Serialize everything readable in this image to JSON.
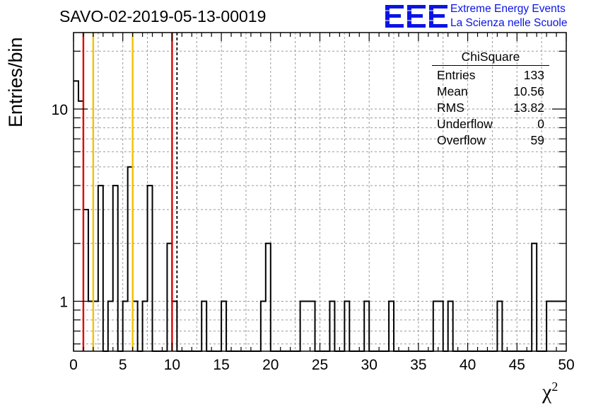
{
  "chart_data": {
    "type": "histogram",
    "title": "SAVO-02-2019-05-13-00019",
    "xlabel": "χ²",
    "ylabel": "Entries/bin",
    "xlim": [
      0,
      50
    ],
    "ylim": [
      0.55,
      25
    ],
    "yscale": "log",
    "grid": true,
    "bin_width": 0.5,
    "bins": [
      {
        "x": 0.0,
        "y": 14
      },
      {
        "x": 0.5,
        "y": 11
      },
      {
        "x": 1.0,
        "y": 3
      },
      {
        "x": 1.5,
        "y": 1
      },
      {
        "x": 2.0,
        "y": 1
      },
      {
        "x": 2.5,
        "y": 4
      },
      {
        "x": 3.0,
        "y": 0
      },
      {
        "x": 3.5,
        "y": 1
      },
      {
        "x": 4.0,
        "y": 4
      },
      {
        "x": 4.5,
        "y": 0
      },
      {
        "x": 5.0,
        "y": 1
      },
      {
        "x": 5.5,
        "y": 5
      },
      {
        "x": 6.0,
        "y": 1
      },
      {
        "x": 6.5,
        "y": 0
      },
      {
        "x": 7.0,
        "y": 1
      },
      {
        "x": 7.5,
        "y": 4
      },
      {
        "x": 8.0,
        "y": 0
      },
      {
        "x": 8.5,
        "y": 0
      },
      {
        "x": 9.0,
        "y": 0
      },
      {
        "x": 9.5,
        "y": 2
      },
      {
        "x": 10.0,
        "y": 1
      },
      {
        "x": 13.0,
        "y": 1
      },
      {
        "x": 15.0,
        "y": 1
      },
      {
        "x": 19.0,
        "y": 1
      },
      {
        "x": 19.5,
        "y": 2
      },
      {
        "x": 23.0,
        "y": 1
      },
      {
        "x": 23.5,
        "y": 1
      },
      {
        "x": 24.0,
        "y": 1
      },
      {
        "x": 26.0,
        "y": 1
      },
      {
        "x": 27.5,
        "y": 1
      },
      {
        "x": 29.5,
        "y": 1
      },
      {
        "x": 32.0,
        "y": 1
      },
      {
        "x": 36.5,
        "y": 1
      },
      {
        "x": 37.0,
        "y": 1
      },
      {
        "x": 38.0,
        "y": 1
      },
      {
        "x": 43.0,
        "y": 1
      },
      {
        "x": 46.5,
        "y": 2
      },
      {
        "x": 48.0,
        "y": 1
      },
      {
        "x": 48.5,
        "y": 1
      },
      {
        "x": 49.0,
        "y": 1
      },
      {
        "x": 49.5,
        "y": 1
      }
    ],
    "vertical_lines": [
      {
        "x": 1.0,
        "color": "#e00000",
        "style": "solid"
      },
      {
        "x": 2.0,
        "color": "#f2c200",
        "style": "solid"
      },
      {
        "x": 6.0,
        "color": "#f2c200",
        "style": "solid"
      },
      {
        "x": 10.0,
        "color": "#e00000",
        "style": "solid"
      },
      {
        "x": 10.5,
        "color": "#000000",
        "style": "dashed"
      }
    ],
    "x_ticks": [
      "0",
      "5",
      "10",
      "15",
      "20",
      "25",
      "30",
      "35",
      "40",
      "45",
      "50"
    ],
    "y_ticks": [
      {
        "value": 1,
        "label": "1"
      },
      {
        "value": 10,
        "label": "10"
      }
    ],
    "stats_box": {
      "title": "ChiSquare",
      "rows": [
        {
          "label": "Entries",
          "value": "133"
        },
        {
          "label": "Mean",
          "value": "10.56"
        },
        {
          "label": "RMS",
          "value": "13.82"
        },
        {
          "label": "Underflow",
          "value": "0"
        },
        {
          "label": "Overflow",
          "value": "59"
        }
      ]
    }
  },
  "logo": {
    "mark": "EEE",
    "line1": "Extreme Energy Events",
    "line2": "La Scienza nelle Scuole",
    "color": "#0a14e6"
  }
}
